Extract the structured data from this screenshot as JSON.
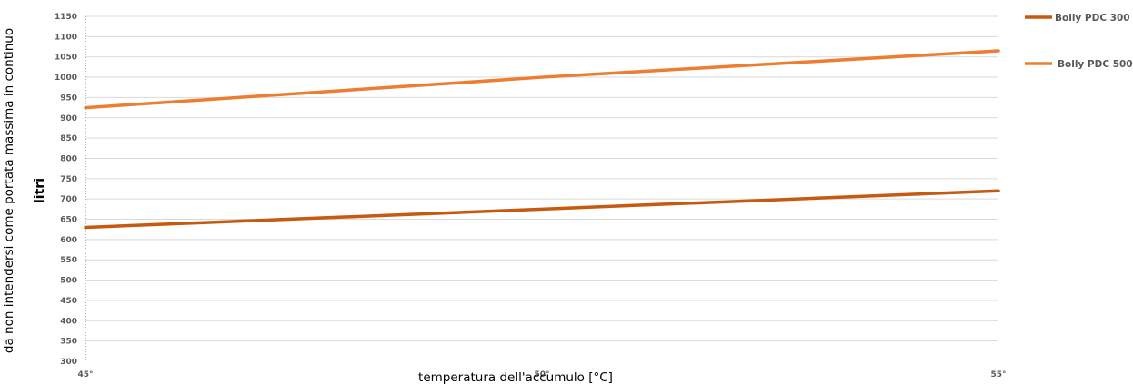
{
  "chart_data": {
    "type": "line",
    "ylabel": "litri",
    "ylabel_note": "da non intendersi come portata massima in continuo",
    "xlabel": "temperatura dell'accumulo [°C]",
    "x_tick_labels": [
      "45°",
      "50°",
      "55°"
    ],
    "x": [
      45,
      50,
      55
    ],
    "xlim": [
      45,
      55
    ],
    "ylim": [
      300,
      1150
    ],
    "y_ticks": [
      300,
      350,
      400,
      450,
      500,
      550,
      600,
      650,
      700,
      750,
      800,
      850,
      900,
      950,
      1000,
      1050,
      1100,
      1150
    ],
    "grid": true,
    "legend_position": "top-right",
    "series": [
      {
        "name": "Bolly PDC 300",
        "color": "#c55a11",
        "values": [
          630,
          675,
          720
        ]
      },
      {
        "name": "Bolly PDC 500",
        "color": "#ed7d31",
        "values": [
          925,
          1000,
          1065
        ]
      }
    ]
  }
}
